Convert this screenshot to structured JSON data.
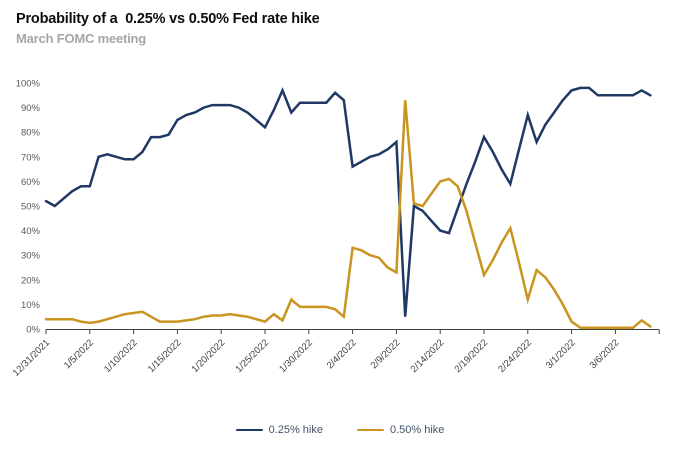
{
  "header": {
    "title": "Probability of a  0.25% vs 0.50% Fed rate hike",
    "subtitle": "March FOMC meeting"
  },
  "chart_data": {
    "type": "line",
    "title": "Probability of a 0.25% vs 0.50% Fed rate hike",
    "subtitle": "March FOMC meeting",
    "grid": false,
    "legend_position": "bottom",
    "ylim": [
      0,
      100
    ],
    "y_tick_labels": [
      "0%",
      "10%",
      "20%",
      "30%",
      "40%",
      "50%",
      "60%",
      "70%",
      "80%",
      "90%",
      "100%"
    ],
    "x_tick_labels": [
      "12/31/2021",
      "1/5/2022",
      "1/10/2022",
      "1/15/2022",
      "1/20/2022",
      "1/25/2022",
      "1/30/2022",
      "2/4/2022",
      "2/9/2022",
      "2/14/2022",
      "2/19/2022",
      "2/24/2022",
      "3/1/2022",
      "3/6/2022"
    ],
    "x_dates": [
      "12/31/2021",
      "1/1/2022",
      "1/2/2022",
      "1/3/2022",
      "1/4/2022",
      "1/5/2022",
      "1/6/2022",
      "1/7/2022",
      "1/8/2022",
      "1/9/2022",
      "1/10/2022",
      "1/11/2022",
      "1/12/2022",
      "1/13/2022",
      "1/14/2022",
      "1/15/2022",
      "1/16/2022",
      "1/17/2022",
      "1/18/2022",
      "1/19/2022",
      "1/20/2022",
      "1/21/2022",
      "1/22/2022",
      "1/23/2022",
      "1/24/2022",
      "1/25/2022",
      "1/26/2022",
      "1/27/2022",
      "1/28/2022",
      "1/29/2022",
      "1/30/2022",
      "1/31/2022",
      "2/1/2022",
      "2/2/2022",
      "2/3/2022",
      "2/4/2022",
      "2/5/2022",
      "2/6/2022",
      "2/7/2022",
      "2/8/2022",
      "2/9/2022",
      "2/10/2022",
      "2/11/2022",
      "2/12/2022",
      "2/13/2022",
      "2/14/2022",
      "2/15/2022",
      "2/16/2022",
      "2/17/2022",
      "2/18/2022",
      "2/19/2022",
      "2/20/2022",
      "2/21/2022",
      "2/22/2022",
      "2/23/2022",
      "2/24/2022",
      "2/25/2022",
      "2/26/2022",
      "2/27/2022",
      "2/28/2022",
      "3/1/2022",
      "3/2/2022",
      "3/3/2022",
      "3/4/2022",
      "3/5/2022",
      "3/6/2022",
      "3/7/2022",
      "3/8/2022",
      "3/9/2022",
      "3/10/2022"
    ],
    "series": [
      {
        "name": "0.25% hike",
        "color": "#1F3864",
        "values": [
          52,
          50,
          53,
          56,
          58,
          58,
          70,
          71,
          70,
          69,
          69,
          72,
          78,
          78,
          79,
          85,
          87,
          88,
          90,
          91,
          91,
          91,
          90,
          88,
          85,
          82,
          89,
          97,
          88,
          92,
          92,
          92,
          92,
          96,
          93,
          66,
          68,
          70,
          71,
          73,
          76,
          5,
          50,
          48,
          44,
          40,
          39,
          49,
          59,
          68,
          78,
          72,
          65,
          59,
          73,
          87,
          76,
          83,
          88,
          93,
          97,
          98,
          98,
          95,
          95,
          95,
          95,
          95,
          97,
          95
        ]
      },
      {
        "name": "0.50% hike",
        "color": "#C9941F",
        "values": [
          4,
          4,
          4,
          4,
          3,
          2.5,
          3,
          4,
          5,
          6,
          6.5,
          7,
          5,
          3,
          3,
          3,
          3.5,
          4,
          5,
          5.5,
          5.5,
          6,
          5.5,
          5,
          4,
          3,
          6,
          3.5,
          12,
          9,
          9,
          9,
          9,
          8,
          5,
          33,
          32,
          30,
          29,
          25,
          23,
          93,
          51,
          50,
          55,
          60,
          61,
          58,
          48,
          35,
          22,
          28,
          35,
          41,
          27,
          12,
          24,
          21,
          16,
          10,
          3,
          0.5,
          0.5,
          0.5,
          0.5,
          0.5,
          0.5,
          0.5,
          3.5,
          1
        ]
      }
    ],
    "axis": {
      "x_tick_interval_days": 5,
      "y_axis_label_color": "#595959",
      "x_axis_label_color": "#404040",
      "axis_line_color": "#404040"
    }
  },
  "legend": {
    "items": [
      {
        "label": "0.25% hike"
      },
      {
        "label": "0.50% hike"
      }
    ]
  }
}
